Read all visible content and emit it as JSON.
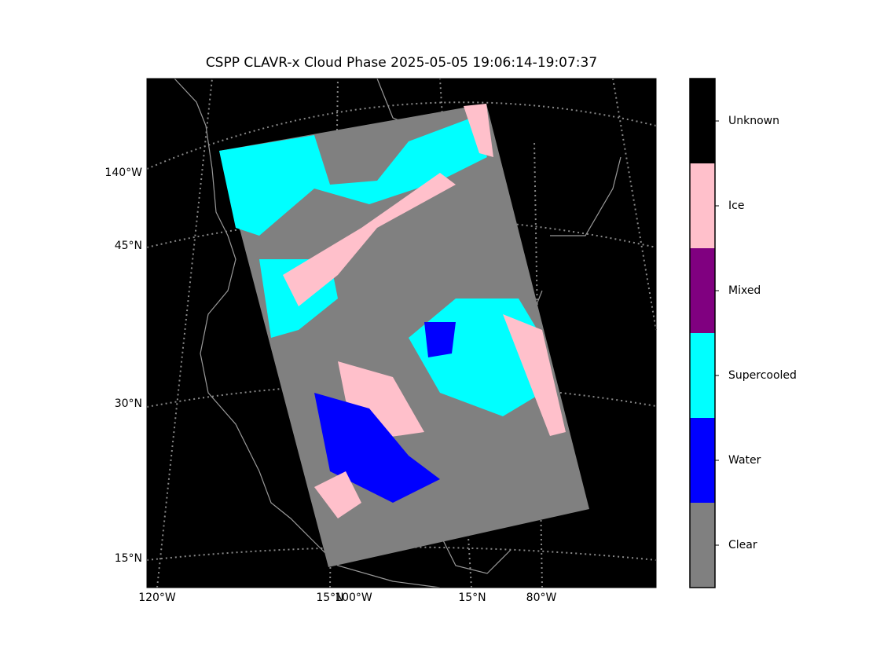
{
  "title": "CSPP CLAVR-x Cloud Phase 2025-05-05 19:06:14-19:07:37",
  "map": {
    "left_labels": [
      "140°W",
      "45°N",
      "30°N",
      "15°N"
    ],
    "bottom_labels": [
      "120°W",
      "15°N",
      "100°W",
      "15°N",
      "80°W"
    ]
  },
  "colorbar": {
    "categories": [
      "Clear",
      "Water",
      "Supercooled",
      "Mixed",
      "Ice",
      "Unknown"
    ],
    "colors": [
      "#808080",
      "#0000ff",
      "#00ffff",
      "#800080",
      "#ffc0cb",
      "#000000"
    ]
  }
}
